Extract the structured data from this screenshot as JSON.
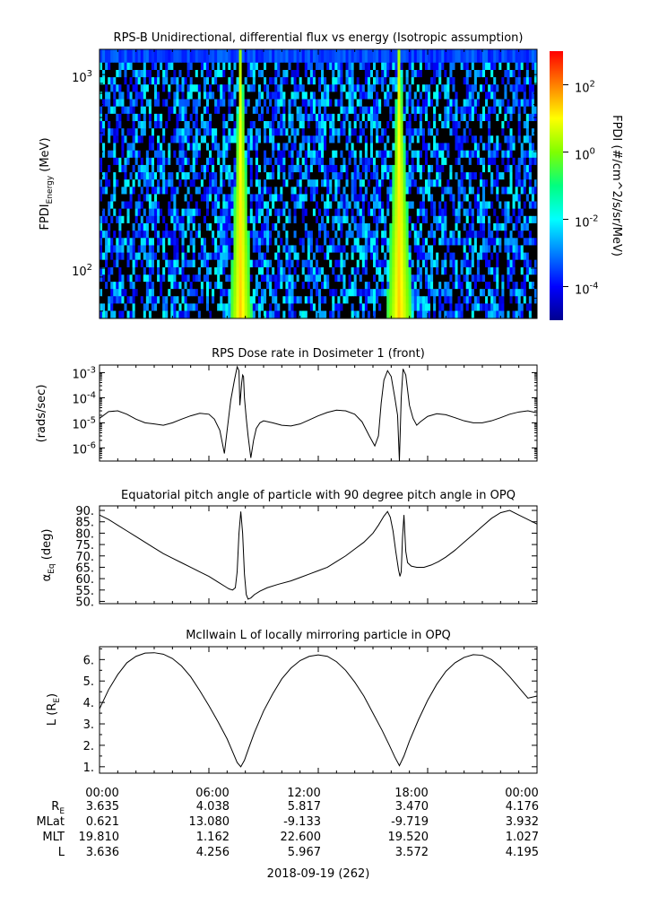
{
  "date_label": "2018-09-19 (262)",
  "colors": {
    "axis": "#000000",
    "line": "#000000",
    "background": "#ffffff"
  },
  "ephemeris": {
    "row_labels": [
      {
        "main": "R",
        "sub": "E"
      },
      {
        "main": "MLat"
      },
      {
        "main": "MLT"
      },
      {
        "main": "L"
      }
    ],
    "columns": [
      {
        "time": "00:00",
        "values": [
          "3.635",
          "0.621",
          "19.810",
          "3.636"
        ]
      },
      {
        "time": "06:00",
        "values": [
          "4.038",
          "13.080",
          "1.162",
          "4.256"
        ]
      },
      {
        "time": "12:00",
        "values": [
          "5.817",
          "-9.133",
          "22.600",
          "5.967"
        ]
      },
      {
        "time": "18:00",
        "values": [
          "3.470",
          "-9.719",
          "19.520",
          "3.572"
        ]
      },
      {
        "time": "00:00",
        "values": [
          "4.176",
          "3.932",
          "1.027",
          "4.195"
        ]
      }
    ]
  },
  "chart_data": [
    {
      "type": "heatmap",
      "title": "RPS-B  Unidirectional, differential flux vs energy (Isotropic assumption)",
      "ylabel": {
        "main": "FPDI",
        "sub": "Energy",
        "unit": " (MeV)"
      },
      "yscale": "log",
      "ylim": [
        55,
        1350
      ],
      "yticks": [
        {
          "v": 100,
          "base": "10",
          "exp": "2"
        },
        {
          "v": 1000,
          "base": "10",
          "exp": "3"
        }
      ],
      "x_range_hours": [
        0,
        24
      ],
      "energy_channels_mev": [
        58,
        63,
        69,
        75,
        82,
        89,
        97,
        106,
        116,
        126,
        138,
        150,
        164,
        179,
        195,
        213,
        232,
        253,
        276,
        301,
        328,
        358,
        390,
        426,
        465,
        507,
        553,
        603,
        658,
        718,
        783,
        854,
        932,
        1016,
        1108,
        1210
      ],
      "colorbar": {
        "label": "FPDI (#/cm^2/s/sr/MeV)",
        "scale": "log",
        "range": [
          -5,
          3
        ],
        "ticks": [
          {
            "base": "10",
            "exp": "2",
            "v": 2
          },
          {
            "base": "10",
            "exp": "0",
            "v": 0
          },
          {
            "base": "10",
            "exp": "-2",
            "v": -2
          },
          {
            "base": "10",
            "exp": "-4",
            "v": -4
          }
        ],
        "colormap": [
          "#00008f",
          "#0000ff",
          "#0080ff",
          "#00ffff",
          "#00ff80",
          "#80ff00",
          "#ffff00",
          "#ff8000",
          "#ff0000"
        ]
      },
      "features": {
        "noise_floor_log10_flux": [
          -4.5,
          -1.8
        ],
        "low_flux_fill": "#000000",
        "top_channel_log10_flux": -3.5,
        "belt_passes": [
          {
            "center_hour": 7.75,
            "low_energy_halfwidth_hours": 0.6,
            "high_energy_halfwidth_hours": 0.05,
            "max_energy_mev": 1350,
            "peak_log10_flux": 1.5
          },
          {
            "center_hour": 16.45,
            "low_energy_halfwidth_hours": 0.7,
            "high_energy_halfwidth_hours": 0.05,
            "max_energy_mev": 1350,
            "peak_log10_flux": 1.5
          }
        ]
      }
    },
    {
      "type": "line",
      "title": "RPS  Dose rate in Dosimeter 1 (front)",
      "ylabel": "(rads/sec)",
      "yscale": "log",
      "ylim": [
        3e-07,
        0.002
      ],
      "yticks": [
        {
          "v": 1e-06,
          "base": "10",
          "exp": "-6"
        },
        {
          "v": 1e-05,
          "base": "10",
          "exp": "-5"
        },
        {
          "v": 0.0001,
          "base": "10",
          "exp": "-4"
        },
        {
          "v": 0.001,
          "base": "10",
          "exp": "-3"
        }
      ],
      "x": [
        0,
        0.5,
        1.0,
        1.5,
        2.0,
        2.5,
        3.0,
        3.5,
        4.0,
        4.5,
        5.0,
        5.5,
        6.0,
        6.3,
        6.6,
        6.85,
        7.0,
        7.2,
        7.4,
        7.55,
        7.65,
        7.7,
        7.8,
        7.85,
        7.9,
        7.95,
        8.05,
        8.15,
        8.3,
        8.45,
        8.6,
        8.8,
        9.0,
        9.5,
        10.0,
        10.5,
        11.0,
        11.5,
        12.0,
        12.5,
        13.0,
        13.5,
        14.0,
        14.4,
        14.8,
        15.1,
        15.3,
        15.45,
        15.6,
        15.8,
        16.0,
        16.2,
        16.35,
        16.45,
        16.55,
        16.65,
        16.8,
        17.0,
        17.2,
        17.4,
        17.6,
        18.0,
        18.5,
        19.0,
        19.5,
        20.0,
        20.5,
        21.0,
        21.5,
        22.0,
        22.5,
        23.0,
        23.5,
        24.0
      ],
      "y": [
        1.5e-05,
        2.8e-05,
        3e-05,
        2.2e-05,
        1.4e-05,
        1e-05,
        9e-06,
        8e-06,
        1e-05,
        1.4e-05,
        1.9e-05,
        2.4e-05,
        2.2e-05,
        1.4e-05,
        5e-06,
        6e-07,
        5e-06,
        8e-05,
        0.0005,
        0.0017,
        0.0012,
        5e-05,
        0.0004,
        0.0008,
        0.0007,
        0.0001,
        1.5e-05,
        3e-06,
        4e-07,
        2e-06,
        6e-06,
        1e-05,
        1.2e-05,
        1e-05,
        8e-06,
        7.5e-06,
        9e-06,
        1.3e-05,
        1.9e-05,
        2.6e-05,
        3.2e-05,
        3e-05,
        2.2e-05,
        1.1e-05,
        3e-06,
        1.2e-06,
        3e-06,
        6e-05,
        0.0005,
        0.0012,
        0.0007,
        0.0001,
        2e-05,
        3e-07,
        0.0001,
        0.0014,
        0.0008,
        5e-05,
        1.5e-05,
        8e-06,
        1.1e-05,
        1.8e-05,
        2.3e-05,
        2.1e-05,
        1.6e-05,
        1.2e-05,
        1e-05,
        1e-05,
        1.2e-05,
        1.6e-05,
        2.2e-05,
        2.7e-05,
        3e-05,
        2.5e-05
      ]
    },
    {
      "type": "line",
      "title": "Equatorial pitch angle of particle with 90 degree pitch angle in OPQ",
      "ylabel": {
        "main": "α",
        "sub": "Eq",
        "unit": " (deg)"
      },
      "ylim": [
        49,
        92
      ],
      "yticks": [
        50,
        55,
        60,
        65,
        70,
        75,
        80,
        85,
        90
      ],
      "x": [
        0,
        0.5,
        1.0,
        1.5,
        2.0,
        2.5,
        3.0,
        3.5,
        4.0,
        4.5,
        5.0,
        5.5,
        6.0,
        6.5,
        6.9,
        7.1,
        7.3,
        7.45,
        7.55,
        7.65,
        7.75,
        7.85,
        7.95,
        8.05,
        8.15,
        8.3,
        8.5,
        8.8,
        9.2,
        9.8,
        10.5,
        11.0,
        11.5,
        12.0,
        12.5,
        13.0,
        13.5,
        14.0,
        14.5,
        15.0,
        15.3,
        15.6,
        15.8,
        15.95,
        16.1,
        16.25,
        16.4,
        16.48,
        16.55,
        16.62,
        16.7,
        16.8,
        16.9,
        17.1,
        17.4,
        17.8,
        18.2,
        18.6,
        19.0,
        19.5,
        20.0,
        20.5,
        21.0,
        21.5,
        22.0,
        22.5,
        23.0,
        23.5,
        24.0
      ],
      "y": [
        88.0,
        86.0,
        83.5,
        81.0,
        78.5,
        76.0,
        73.5,
        71.0,
        69.0,
        67.0,
        65.0,
        63.0,
        61.0,
        58.5,
        56.5,
        55.5,
        55.0,
        56.0,
        63.0,
        80.0,
        89.5,
        80.0,
        62.0,
        53.0,
        51.0,
        51.5,
        53.0,
        54.5,
        56.0,
        57.5,
        59.0,
        60.5,
        62.0,
        63.5,
        65.0,
        67.5,
        70.0,
        73.0,
        76.0,
        80.0,
        83.5,
        87.5,
        89.5,
        87.0,
        81.0,
        72.0,
        64.0,
        61.0,
        63.0,
        78.0,
        88.0,
        72.0,
        67.0,
        65.5,
        65.0,
        65.0,
        66.0,
        67.5,
        69.5,
        72.5,
        76.0,
        79.5,
        83.0,
        86.5,
        89.0,
        90.0,
        88.0,
        86.0,
        84.0
      ]
    },
    {
      "type": "line",
      "title": "McIlwain L of locally mirroring particle in OPQ",
      "ylabel": {
        "main": "L (R",
        "sub": "E",
        "unit": ")"
      },
      "ylim": [
        0.7,
        6.6
      ],
      "yticks": [
        1,
        2,
        3,
        4,
        5,
        6
      ],
      "yticklabels": [
        "1.",
        "2.",
        "3.",
        "4.",
        "5.",
        "6."
      ],
      "x": [
        0,
        0.5,
        1.0,
        1.5,
        2.0,
        2.5,
        3.0,
        3.5,
        4.0,
        4.5,
        5.0,
        5.5,
        6.0,
        6.5,
        7.0,
        7.3,
        7.55,
        7.75,
        7.95,
        8.2,
        8.5,
        9.0,
        9.5,
        10.0,
        10.5,
        11.0,
        11.5,
        12.0,
        12.5,
        13.0,
        13.5,
        14.0,
        14.5,
        15.0,
        15.5,
        15.9,
        16.2,
        16.45,
        16.7,
        17.0,
        17.5,
        18.0,
        18.5,
        19.0,
        19.5,
        20.0,
        20.5,
        21.0,
        21.5,
        22.0,
        22.5,
        23.0,
        23.5,
        24.0
      ],
      "y": [
        3.7,
        4.6,
        5.3,
        5.85,
        6.15,
        6.3,
        6.32,
        6.25,
        6.05,
        5.7,
        5.2,
        4.55,
        3.85,
        3.1,
        2.3,
        1.7,
        1.2,
        1.0,
        1.3,
        1.9,
        2.6,
        3.6,
        4.4,
        5.1,
        5.6,
        5.95,
        6.15,
        6.22,
        6.15,
        5.9,
        5.5,
        4.95,
        4.3,
        3.5,
        2.7,
        2.0,
        1.45,
        1.05,
        1.5,
        2.2,
        3.2,
        4.1,
        4.85,
        5.45,
        5.85,
        6.1,
        6.23,
        6.2,
        6.0,
        5.65,
        5.2,
        4.7,
        4.2,
        4.3
      ]
    }
  ]
}
